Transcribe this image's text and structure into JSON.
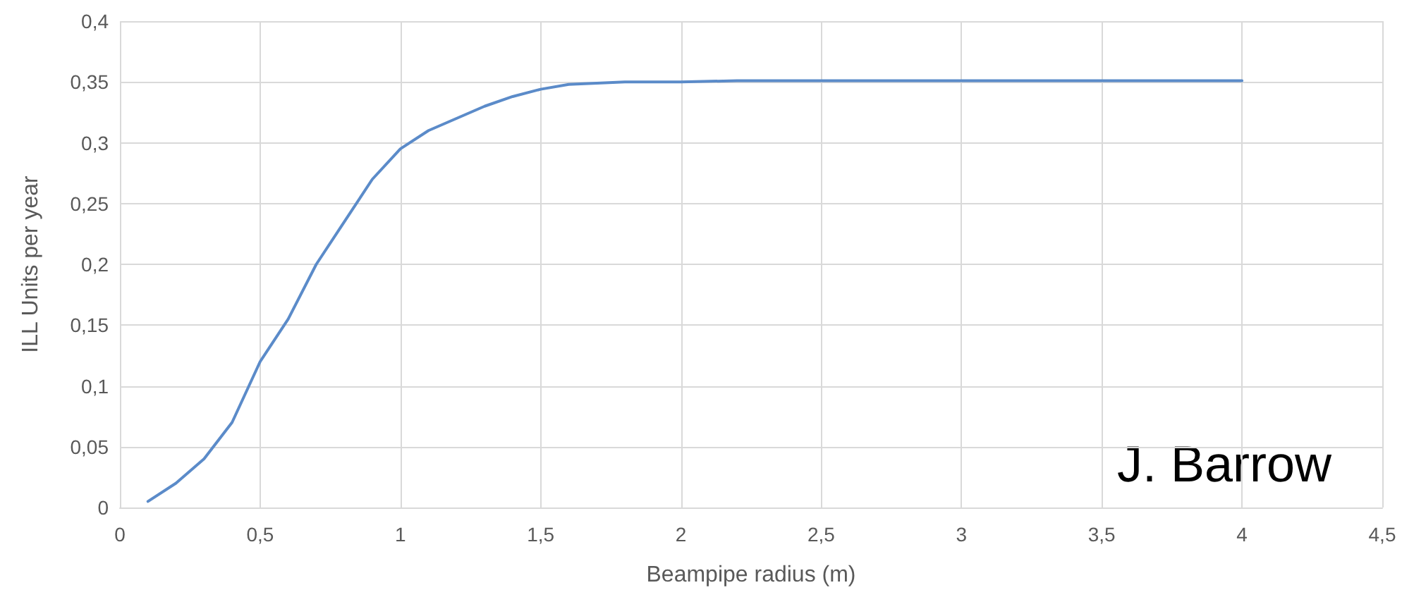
{
  "chart_data": {
    "type": "line",
    "xlabel": "Beampipe radius (m)",
    "ylabel": "ILL Units per year",
    "annotations": [
      "J. Barrow"
    ],
    "x": [
      0.1,
      0.2,
      0.3,
      0.4,
      0.5,
      0.6,
      0.7,
      0.8,
      0.9,
      1.0,
      1.1,
      1.2,
      1.3,
      1.4,
      1.5,
      1.6,
      1.7,
      1.8,
      2.0,
      2.2,
      2.5,
      3.0,
      3.5,
      4.0
    ],
    "series": [
      {
        "color": "#5b8bc9",
        "values": [
          0.005,
          0.02,
          0.04,
          0.07,
          0.12,
          0.155,
          0.2,
          0.235,
          0.27,
          0.295,
          0.31,
          0.32,
          0.33,
          0.338,
          0.344,
          0.348,
          0.349,
          0.35,
          0.35,
          0.351,
          0.351,
          0.351,
          0.351,
          0.351
        ]
      }
    ],
    "xlim": [
      0,
      4.5
    ],
    "xticks": [
      0,
      {
        "value": 0.5,
        "label": "0,5"
      },
      1,
      {
        "value": 1.5,
        "label": "1,5"
      },
      2,
      {
        "value": 2.5,
        "label": "2,5"
      },
      3,
      {
        "value": 3.5,
        "label": "3,5"
      },
      4,
      {
        "value": 4.5,
        "label": "4,5"
      }
    ],
    "ylim": [
      0,
      0.4
    ],
    "yticks": [
      0,
      {
        "value": 0.05,
        "label": "0,05"
      },
      {
        "value": 0.1,
        "label": "0,1"
      },
      {
        "value": 0.15,
        "label": "0,15"
      },
      {
        "value": 0.2,
        "label": "0,2"
      },
      {
        "value": 0.25,
        "label": "0,25"
      },
      {
        "value": 0.3,
        "label": "0,3"
      },
      {
        "value": 0.35,
        "label": "0,35"
      },
      {
        "value": 0.4,
        "label": "0,4"
      }
    ],
    "grid": true,
    "marker": "none",
    "line_style": "solid"
  }
}
